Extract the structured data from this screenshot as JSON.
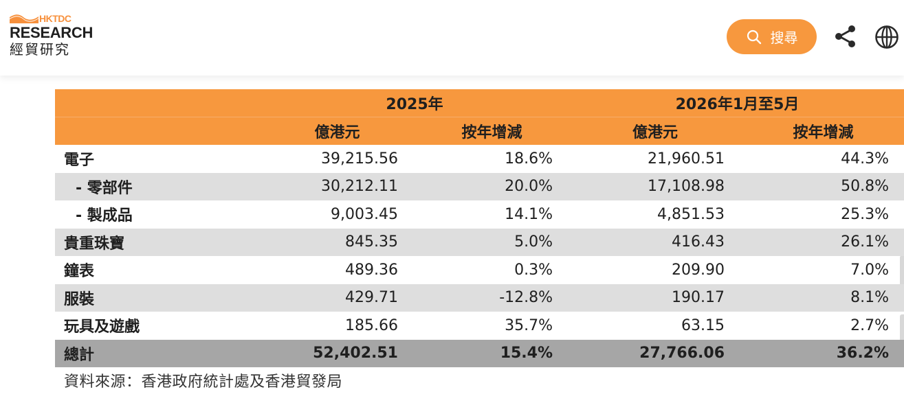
{
  "header": {
    "logo_brand": "HKTDC",
    "logo_title": "RESEARCH",
    "logo_subtitle": "經貿研究",
    "search_label": "搜尋",
    "icons": {
      "search": "search-icon",
      "share": "share-icon",
      "language": "globe-icon"
    }
  },
  "colors": {
    "accent": "#f7983e",
    "row_shade": "#dedede",
    "total_row": "#a6a6a6",
    "brand_orange": "#f7903c"
  },
  "table": {
    "year_headers": [
      "2025年",
      "2026年1月至5月"
    ],
    "sub_headers": [
      "億港元",
      "按年增減",
      "億港元",
      "按年增減"
    ],
    "rows": [
      {
        "label": "電子",
        "values": [
          "39,215.56",
          "18.6%",
          "21,960.51",
          "44.3%"
        ]
      },
      {
        "label": "- 零部件",
        "values": [
          "30,212.11",
          "20.0%",
          "17,108.98",
          "50.8%"
        ]
      },
      {
        "label": "- 製成品",
        "values": [
          "9,003.45",
          "14.1%",
          "4,851.53",
          "25.3%"
        ]
      },
      {
        "label": "貴重珠寶",
        "values": [
          "845.35",
          "5.0%",
          "416.43",
          "26.1%"
        ]
      },
      {
        "label": "鐘表",
        "values": [
          "489.36",
          "0.3%",
          "209.90",
          "7.0%"
        ]
      },
      {
        "label": "服裝",
        "values": [
          "429.71",
          "-12.8%",
          "190.17",
          "8.1%"
        ]
      },
      {
        "label": "玩具及遊戲",
        "values": [
          "185.66",
          "35.7%",
          "63.15",
          "2.7%"
        ]
      },
      {
        "label": "總計",
        "values": [
          "52,402.51",
          "15.4%",
          "27,766.06",
          "36.2%"
        ]
      }
    ],
    "source": "資料來源：香港政府統計處及香港貿發局"
  }
}
